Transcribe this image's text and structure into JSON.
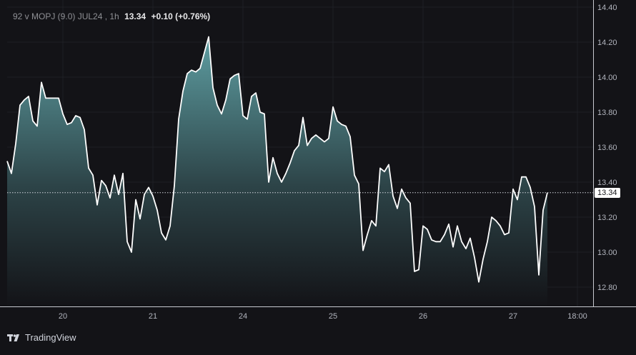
{
  "header": {
    "symbol_info": "92 v MOPJ (9.0) JUL24 , 1h",
    "last": "13.34",
    "change": "+0.10 (+0.76%)"
  },
  "brand": {
    "name": "TradingView"
  },
  "colors": {
    "background": "#131317",
    "line": "#ffffff",
    "area_top": "#5e9ea2",
    "area_bottom": "#131317",
    "axis_text": "#b2b5be",
    "grid": "#1e1f24"
  },
  "chart_data": {
    "type": "area",
    "ylim": [
      12.7,
      14.4
    ],
    "y_ticks": [
      12.8,
      13.0,
      13.2,
      13.4,
      13.6,
      13.8,
      14.0,
      14.2,
      14.4
    ],
    "y_tick_labels": [
      "12.80",
      "13.00",
      "13.20",
      "13.40",
      "13.60",
      "13.80",
      "14.00",
      "14.20",
      "14.40"
    ],
    "x_ticks": [
      {
        "label": "20",
        "index": 13
      },
      {
        "label": "21",
        "index": 34
      },
      {
        "label": "24",
        "index": 55
      },
      {
        "label": "25",
        "index": 76
      },
      {
        "label": "26",
        "index": 97
      },
      {
        "label": "27",
        "index": 118
      },
      {
        "label": "18:00",
        "index": 133
      }
    ],
    "last_price": 13.34,
    "last_price_label": "13.34",
    "series": [
      {
        "values": [
          13.52,
          13.45,
          13.62,
          13.84,
          13.87,
          13.89,
          13.75,
          13.72,
          13.97,
          13.88,
          13.88,
          13.88,
          13.88,
          13.79,
          13.73,
          13.74,
          13.78,
          13.77,
          13.7,
          13.48,
          13.44,
          13.27,
          13.41,
          13.38,
          13.31,
          13.44,
          13.33,
          13.45,
          13.06,
          13.0,
          13.3,
          13.19,
          13.33,
          13.37,
          13.32,
          13.24,
          13.11,
          13.07,
          13.15,
          13.38,
          13.76,
          13.92,
          14.02,
          14.04,
          14.03,
          14.05,
          14.14,
          14.23,
          13.94,
          13.84,
          13.79,
          13.87,
          13.99,
          14.01,
          14.02,
          13.78,
          13.76,
          13.89,
          13.91,
          13.8,
          13.79,
          13.4,
          13.54,
          13.45,
          13.4,
          13.45,
          13.51,
          13.58,
          13.61,
          13.77,
          13.61,
          13.65,
          13.67,
          13.65,
          13.63,
          13.65,
          13.83,
          13.75,
          13.73,
          13.72,
          13.66,
          13.44,
          13.39,
          13.01,
          13.1,
          13.18,
          13.15,
          13.48,
          13.46,
          13.5,
          13.32,
          13.25,
          13.36,
          13.31,
          13.28,
          12.89,
          12.9,
          13.15,
          13.13,
          13.07,
          13.06,
          13.06,
          13.1,
          13.16,
          13.03,
          13.15,
          13.06,
          13.02,
          13.08,
          12.97,
          12.83,
          12.96,
          13.06,
          13.2,
          13.18,
          13.15,
          13.1,
          13.11,
          13.36,
          13.3,
          13.43,
          13.43,
          13.37,
          13.26,
          12.87,
          13.24,
          13.34
        ]
      }
    ]
  }
}
